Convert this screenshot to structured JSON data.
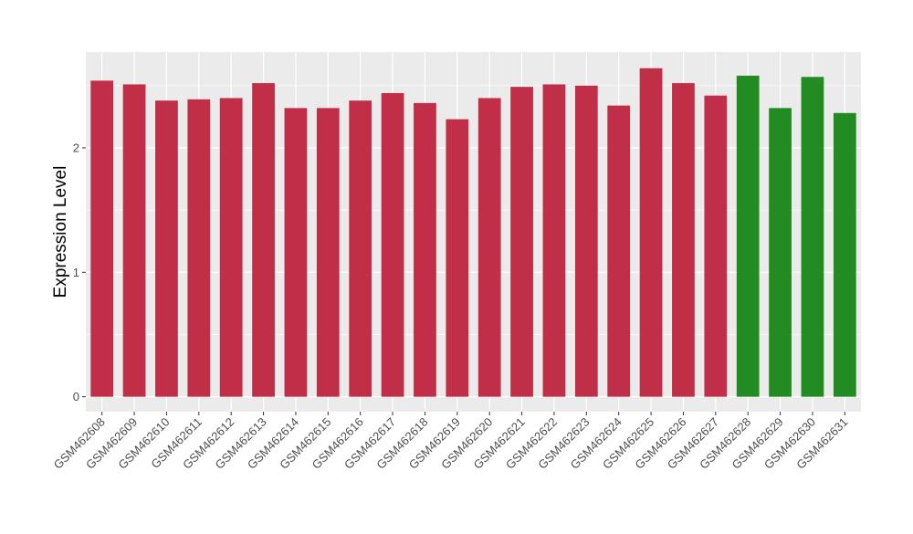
{
  "chart_data": {
    "type": "bar",
    "title": "",
    "xlabel": "",
    "ylabel": "Expression Level",
    "ylim": [
      -0.12,
      2.77
    ],
    "yticks": [
      0,
      1,
      2
    ],
    "grid": true,
    "legend": "none",
    "categories": [
      "GSM462608",
      "GSM462609",
      "GSM462610",
      "GSM462611",
      "GSM462612",
      "GSM462613",
      "GSM462614",
      "GSM462615",
      "GSM462616",
      "GSM462617",
      "GSM462618",
      "GSM462619",
      "GSM462620",
      "GSM462621",
      "GSM462622",
      "GSM462623",
      "GSM462624",
      "GSM462625",
      "GSM462626",
      "GSM462627",
      "GSM462628",
      "GSM462629",
      "GSM462630",
      "GSM462631"
    ],
    "values": [
      2.54,
      2.51,
      2.38,
      2.39,
      2.4,
      2.52,
      2.32,
      2.32,
      2.38,
      2.44,
      2.36,
      2.23,
      2.4,
      2.49,
      2.51,
      2.5,
      2.34,
      2.64,
      2.52,
      2.42,
      2.58,
      2.32,
      2.57,
      2.28
    ],
    "groups": [
      "a",
      "a",
      "a",
      "a",
      "a",
      "a",
      "a",
      "a",
      "a",
      "a",
      "a",
      "a",
      "a",
      "a",
      "a",
      "a",
      "a",
      "a",
      "a",
      "a",
      "b",
      "b",
      "b",
      "b"
    ],
    "colors": {
      "a": "#c12e48",
      "b": "#228b22",
      "panel": "#ebebeb",
      "grid": "#ffffff",
      "axis_text": "#4d4d4d",
      "label_text": "#000000"
    }
  }
}
